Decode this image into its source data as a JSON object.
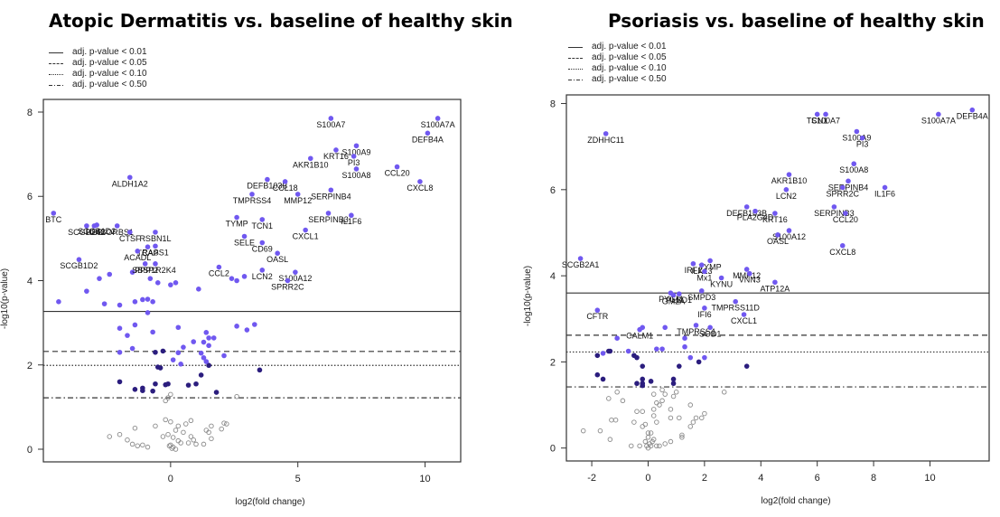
{
  "colors": {
    "significant": "#7058f0",
    "moderate": "#2b1d7e",
    "nonsignificant": "#8a8a8a",
    "frame": "#333333"
  },
  "legend_items": [
    {
      "label": "adj. p-value < 0.01",
      "style": "solid"
    },
    {
      "label": "adj. p-value < 0.05",
      "style": "dashed"
    },
    {
      "label": "adj. p-value < 0.10",
      "style": "dotted"
    },
    {
      "label": "adj. p-value < 0.50",
      "style": "dotdash"
    }
  ],
  "chart_data": [
    {
      "type": "scatter",
      "title": "Atopic Dermatitis vs. baseline of healthy skin",
      "xlabel": "log2(fold change)",
      "ylabel": "-log10(p-value)",
      "xlim": [
        -5,
        11.4
      ],
      "ylim": [
        -0.3,
        8.3
      ],
      "xticks": [
        0,
        5,
        10
      ],
      "yticks": [
        0,
        2,
        4,
        6,
        8
      ],
      "thresholds": [
        {
          "label": "adj. p-value < 0.01",
          "y": 3.27,
          "style": "solid"
        },
        {
          "label": "adj. p-value < 0.05",
          "y": 2.32,
          "style": "dashed"
        },
        {
          "label": "adj. p-value < 0.10",
          "y": 1.99,
          "style": "dotted"
        },
        {
          "label": "adj. p-value < 0.50",
          "y": 1.22,
          "style": "dotdash"
        }
      ],
      "labeled_points": [
        {
          "gene": "S100A7A",
          "x": 10.5,
          "y": 7.85
        },
        {
          "gene": "DEFB4A",
          "x": 10.1,
          "y": 7.5
        },
        {
          "gene": "S100A7",
          "x": 6.3,
          "y": 7.85
        },
        {
          "gene": "S100A9",
          "x": 7.3,
          "y": 7.2
        },
        {
          "gene": "KRT16",
          "x": 6.5,
          "y": 7.1
        },
        {
          "gene": "AKR1B10",
          "x": 5.5,
          "y": 6.9
        },
        {
          "gene": "PI3",
          "x": 7.2,
          "y": 6.95
        },
        {
          "gene": "S100A8",
          "x": 7.3,
          "y": 6.65
        },
        {
          "gene": "CCL20",
          "x": 8.9,
          "y": 6.7
        },
        {
          "gene": "DEFB103B",
          "x": 3.8,
          "y": 6.4
        },
        {
          "gene": "CCL18",
          "x": 4.5,
          "y": 6.35
        },
        {
          "gene": "TMPRSS4",
          "x": 3.2,
          "y": 6.05
        },
        {
          "gene": "MMP12",
          "x": 5.0,
          "y": 6.05
        },
        {
          "gene": "SERPINB4",
          "x": 6.3,
          "y": 6.15
        },
        {
          "gene": "CXCL8",
          "x": 9.8,
          "y": 6.35
        },
        {
          "gene": "ALDH1A2",
          "x": -1.6,
          "y": 6.45
        },
        {
          "gene": "TYMP",
          "x": 2.6,
          "y": 5.5
        },
        {
          "gene": "TCN1",
          "x": 3.6,
          "y": 5.45
        },
        {
          "gene": "SERPINB3",
          "x": 6.2,
          "y": 5.6
        },
        {
          "gene": "IL1F6",
          "x": 7.1,
          "y": 5.55
        },
        {
          "gene": "CXCL1",
          "x": 5.3,
          "y": 5.2
        },
        {
          "gene": "SELE",
          "x": 2.9,
          "y": 5.05
        },
        {
          "gene": "CD69",
          "x": 3.6,
          "y": 4.9
        },
        {
          "gene": "OASL",
          "x": 4.2,
          "y": 4.65
        },
        {
          "gene": "S100A12",
          "x": 4.9,
          "y": 4.2
        },
        {
          "gene": "SPRR2C",
          "x": 4.6,
          "y": 4.0
        },
        {
          "gene": "LCN2",
          "x": 3.6,
          "y": 4.25
        },
        {
          "gene": "CCL2",
          "x": 1.9,
          "y": 4.32
        },
        {
          "gene": "BTC",
          "x": -4.6,
          "y": 5.6
        },
        {
          "gene": "SCGB2A2",
          "x": -3.3,
          "y": 5.3
        },
        {
          "gene": "HBB",
          "x": -3.0,
          "y": 5.3
        },
        {
          "gene": "SCGB1D2",
          "x": -2.9,
          "y": 5.32
        },
        {
          "gene": "SORBS1",
          "x": -2.1,
          "y": 5.3
        },
        {
          "gene": "CTSF",
          "x": -1.6,
          "y": 5.15
        },
        {
          "gene": "RSBN1L",
          "x": -0.6,
          "y": 5.15
        },
        {
          "gene": "TCAP",
          "x": -0.9,
          "y": 4.8
        },
        {
          "gene": "RASS1",
          "x": -0.6,
          "y": 4.82
        },
        {
          "gene": "ACADL",
          "x": -1.3,
          "y": 4.7
        },
        {
          "gene": "SCGB1D2b",
          "x": -3.6,
          "y": 4.5
        },
        {
          "gene": "SBSP2",
          "x": -1.0,
          "y": 4.4
        },
        {
          "gene": "PPP1R2K4",
          "x": -0.6,
          "y": 4.4
        }
      ],
      "significant_points": [
        [
          -4.4,
          3.5
        ],
        [
          -3.3,
          3.75
        ],
        [
          -2.8,
          4.05
        ],
        [
          -2.6,
          3.45
        ],
        [
          -2.4,
          4.15
        ],
        [
          -2.0,
          3.42
        ],
        [
          -1.5,
          4.2
        ],
        [
          -1.4,
          3.5
        ],
        [
          -1.1,
          3.55
        ],
        [
          -0.9,
          3.56
        ],
        [
          -0.8,
          4.05
        ],
        [
          -0.7,
          3.5
        ],
        [
          -0.5,
          3.95
        ],
        [
          0.0,
          3.9
        ],
        [
          0.2,
          3.95
        ],
        [
          1.1,
          3.8
        ],
        [
          2.4,
          4.05
        ],
        [
          2.6,
          4.0
        ],
        [
          2.9,
          4.1
        ],
        [
          -2.0,
          2.87
        ],
        [
          -1.4,
          2.95
        ],
        [
          -0.9,
          3.24
        ],
        [
          -1.7,
          2.7
        ],
        [
          -0.7,
          2.78
        ],
        [
          0.3,
          2.89
        ],
        [
          1.3,
          2.54
        ],
        [
          1.5,
          2.64
        ],
        [
          1.4,
          2.77
        ],
        [
          1.7,
          2.64
        ],
        [
          2.6,
          2.92
        ],
        [
          3.0,
          2.83
        ],
        [
          3.3,
          2.96
        ],
        [
          -2.0,
          2.3
        ],
        [
          -1.5,
          2.39
        ],
        [
          0.3,
          2.29
        ],
        [
          0.5,
          2.42
        ],
        [
          0.9,
          2.55
        ],
        [
          1.5,
          2.46
        ],
        [
          1.2,
          2.28
        ],
        [
          0.1,
          2.12
        ],
        [
          0.4,
          2.02
        ],
        [
          1.4,
          2.08
        ],
        [
          2.1,
          2.22
        ],
        [
          1.3,
          2.17
        ]
      ],
      "moderate_points": [
        [
          -0.3,
          2.33
        ],
        [
          -0.6,
          2.3
        ],
        [
          -0.4,
          1.93
        ],
        [
          -0.5,
          1.95
        ],
        [
          1.5,
          1.99
        ],
        [
          3.5,
          1.88
        ],
        [
          -2.0,
          1.6
        ],
        [
          -1.4,
          1.42
        ],
        [
          -1.1,
          1.45
        ],
        [
          -1.1,
          1.39
        ],
        [
          -0.6,
          1.55
        ],
        [
          -0.1,
          1.55
        ],
        [
          0.7,
          1.52
        ],
        [
          1.0,
          1.55
        ],
        [
          1.2,
          1.76
        ],
        [
          1.8,
          1.35
        ],
        [
          -0.2,
          1.53
        ],
        [
          -0.7,
          1.38
        ]
      ],
      "nonsignificant_points": [
        [
          -2.4,
          0.3
        ],
        [
          -2.0,
          0.35
        ],
        [
          -1.7,
          0.22
        ],
        [
          -1.5,
          0.12
        ],
        [
          -1.3,
          0.08
        ],
        [
          -1.1,
          0.1
        ],
        [
          -0.9,
          0.05
        ],
        [
          -0.2,
          0.7
        ],
        [
          0.0,
          0.65
        ],
        [
          0.3,
          0.55
        ],
        [
          0.6,
          0.6
        ],
        [
          0.2,
          0.45
        ],
        [
          0.5,
          0.4
        ],
        [
          -0.1,
          0.35
        ],
        [
          0.1,
          0.28
        ],
        [
          0.3,
          0.2
        ],
        [
          0.0,
          0.1
        ],
        [
          0.1,
          0.05
        ],
        [
          0.2,
          0.0
        ],
        [
          0.05,
          0.02
        ],
        [
          -0.05,
          0.08
        ],
        [
          0.4,
          0.15
        ],
        [
          0.7,
          0.15
        ],
        [
          1.0,
          0.12
        ],
        [
          1.3,
          0.12
        ],
        [
          0.9,
          0.22
        ],
        [
          0.8,
          0.3
        ],
        [
          1.4,
          0.45
        ],
        [
          1.5,
          0.4
        ],
        [
          1.6,
          0.55
        ],
        [
          2.0,
          0.48
        ],
        [
          2.1,
          0.62
        ],
        [
          2.2,
          0.6
        ],
        [
          -0.3,
          0.3
        ],
        [
          -0.6,
          0.55
        ],
        [
          -1.4,
          0.5
        ],
        [
          -0.2,
          1.15
        ],
        [
          -0.1,
          1.22
        ],
        [
          0.0,
          1.3
        ],
        [
          2.6,
          1.25
        ],
        [
          0.8,
          0.68
        ],
        [
          1.6,
          0.25
        ]
      ]
    },
    {
      "type": "scatter",
      "title": "Psoriasis vs. baseline of healthy skin",
      "xlabel": "log2(fold change)",
      "ylabel": "-log10(p-value)",
      "xlim": [
        -2.9,
        12.1
      ],
      "ylim": [
        -0.3,
        8.2
      ],
      "xticks": [
        -2,
        0,
        2,
        4,
        6,
        8,
        10
      ],
      "yticks": [
        0,
        2,
        4,
        6,
        8
      ],
      "thresholds": [
        {
          "label": "adj. p-value < 0.01",
          "y": 3.6,
          "style": "solid"
        },
        {
          "label": "adj. p-value < 0.05",
          "y": 2.62,
          "style": "dashed"
        },
        {
          "label": "adj. p-value < 0.10",
          "y": 2.23,
          "style": "dotted"
        },
        {
          "label": "adj. p-value < 0.50",
          "y": 1.42,
          "style": "dotdash"
        }
      ],
      "labeled_points": [
        {
          "gene": "DEFB4A",
          "x": 11.5,
          "y": 7.85
        },
        {
          "gene": "S100A7A",
          "x": 10.3,
          "y": 7.75
        },
        {
          "gene": "S100A7",
          "x": 6.3,
          "y": 7.75
        },
        {
          "gene": "TCN1",
          "x": 6.0,
          "y": 7.75
        },
        {
          "gene": "S100A9",
          "x": 7.4,
          "y": 7.35
        },
        {
          "gene": "PI3",
          "x": 7.6,
          "y": 7.2
        },
        {
          "gene": "ZDHHC11",
          "x": -1.5,
          "y": 7.3
        },
        {
          "gene": "S100A8",
          "x": 7.3,
          "y": 6.6
        },
        {
          "gene": "AKR1B10",
          "x": 5.0,
          "y": 6.35
        },
        {
          "gene": "SERPINB4",
          "x": 7.1,
          "y": 6.2
        },
        {
          "gene": "SPRR2C",
          "x": 6.9,
          "y": 6.05
        },
        {
          "gene": "IL1F6",
          "x": 8.4,
          "y": 6.05
        },
        {
          "gene": "LCN2",
          "x": 4.9,
          "y": 6.0
        },
        {
          "gene": "DEFB103B",
          "x": 3.5,
          "y": 5.6
        },
        {
          "gene": "PLA2G4D",
          "x": 3.8,
          "y": 5.5
        },
        {
          "gene": "KRT16",
          "x": 4.5,
          "y": 5.45
        },
        {
          "gene": "SERPINB3",
          "x": 6.6,
          "y": 5.6
        },
        {
          "gene": "CCL20",
          "x": 7.0,
          "y": 5.45
        },
        {
          "gene": "S100A12",
          "x": 5.0,
          "y": 5.05
        },
        {
          "gene": "OASL",
          "x": 4.6,
          "y": 4.95
        },
        {
          "gene": "CXCL8",
          "x": 6.9,
          "y": 4.7
        },
        {
          "gene": "SCGB2A1",
          "x": -2.4,
          "y": 4.4
        },
        {
          "gene": "TYMP",
          "x": 2.2,
          "y": 4.35
        },
        {
          "gene": "IRF1",
          "x": 1.6,
          "y": 4.28
        },
        {
          "gene": "ILK13",
          "x": 1.9,
          "y": 4.25
        },
        {
          "gene": "Mx1",
          "x": 2.0,
          "y": 4.1
        },
        {
          "gene": "MMP12",
          "x": 3.5,
          "y": 4.15
        },
        {
          "gene": "VNN3",
          "x": 3.6,
          "y": 4.05
        },
        {
          "gene": "KYNU",
          "x": 2.6,
          "y": 3.95
        },
        {
          "gene": "ATP12A",
          "x": 4.5,
          "y": 3.85
        },
        {
          "gene": "PYGM",
          "x": 0.8,
          "y": 3.6
        },
        {
          "gene": "GM2A",
          "x": 0.9,
          "y": 3.55
        },
        {
          "gene": "PLBD1",
          "x": 1.1,
          "y": 3.58
        },
        {
          "gene": "SMPD3",
          "x": 1.9,
          "y": 3.65
        },
        {
          "gene": "TMPRSS11D",
          "x": 3.1,
          "y": 3.4
        },
        {
          "gene": "CFTR",
          "x": -1.8,
          "y": 3.2
        },
        {
          "gene": "IFI6",
          "x": 2.0,
          "y": 3.25
        },
        {
          "gene": "CXCL1",
          "x": 3.4,
          "y": 3.1
        },
        {
          "gene": "TMPRSS4",
          "x": 1.7,
          "y": 2.85
        },
        {
          "gene": "SOD1",
          "x": 2.2,
          "y": 2.8
        },
        {
          "gene": "CALM1",
          "x": -0.3,
          "y": 2.75
        }
      ],
      "significant_points": [
        [
          -1.6,
          2.2
        ],
        [
          -1.1,
          2.55
        ],
        [
          -0.7,
          2.25
        ],
        [
          -0.2,
          2.8
        ],
        [
          0.6,
          2.8
        ],
        [
          1.3,
          2.55
        ],
        [
          1.3,
          2.35
        ],
        [
          1.5,
          2.1
        ],
        [
          2.0,
          2.1
        ],
        [
          0.5,
          2.3
        ],
        [
          0.3,
          2.3
        ]
      ],
      "moderate_points": [
        [
          -1.8,
          2.15
        ],
        [
          -1.4,
          2.25
        ],
        [
          -0.5,
          2.15
        ],
        [
          -0.4,
          2.1
        ],
        [
          -0.2,
          1.9
        ],
        [
          1.1,
          1.9
        ],
        [
          1.8,
          2.0
        ],
        [
          3.5,
          1.9
        ],
        [
          -1.8,
          1.7
        ],
        [
          -1.6,
          1.6
        ],
        [
          -0.4,
          1.5
        ],
        [
          -0.2,
          1.6
        ],
        [
          -0.2,
          1.5
        ],
        [
          0.1,
          1.55
        ],
        [
          0.9,
          1.6
        ],
        [
          0.9,
          1.5
        ],
        [
          -0.2,
          1.45
        ],
        [
          -1.35,
          2.25
        ]
      ],
      "nonsignificant_points": [
        [
          -2.3,
          0.4
        ],
        [
          -1.7,
          0.4
        ],
        [
          -1.35,
          0.2
        ],
        [
          -1.3,
          0.65
        ],
        [
          -1.15,
          0.65
        ],
        [
          -1.4,
          1.15
        ],
        [
          -1.1,
          1.3
        ],
        [
          -0.9,
          1.1
        ],
        [
          -0.4,
          0.85
        ],
        [
          -0.5,
          0.6
        ],
        [
          -0.6,
          0.05
        ],
        [
          -0.3,
          0.05
        ],
        [
          -0.2,
          0.5
        ],
        [
          -0.1,
          0.55
        ],
        [
          0.0,
          0.35
        ],
        [
          0.0,
          0.25
        ],
        [
          -0.1,
          0.15
        ],
        [
          0.05,
          0.1
        ],
        [
          0.1,
          0.05
        ],
        [
          0.0,
          0.0
        ],
        [
          0.2,
          0.2
        ],
        [
          0.3,
          0.05
        ],
        [
          0.4,
          0.05
        ],
        [
          0.6,
          0.1
        ],
        [
          0.8,
          0.15
        ],
        [
          0.2,
          0.9
        ],
        [
          0.3,
          1.05
        ],
        [
          0.4,
          1.0
        ],
        [
          0.5,
          1.1
        ],
        [
          0.6,
          1.25
        ],
        [
          0.5,
          1.35
        ],
        [
          0.8,
          0.7
        ],
        [
          0.8,
          0.9
        ],
        [
          0.9,
          1.2
        ],
        [
          1.0,
          1.3
        ],
        [
          1.1,
          0.7
        ],
        [
          1.2,
          0.3
        ],
        [
          1.2,
          0.25
        ],
        [
          1.5,
          0.5
        ],
        [
          1.6,
          0.6
        ],
        [
          1.7,
          0.7
        ],
        [
          1.9,
          0.7
        ],
        [
          2.0,
          0.8
        ],
        [
          1.5,
          1.0
        ],
        [
          2.7,
          1.3
        ],
        [
          0.2,
          0.75
        ],
        [
          0.3,
          0.6
        ],
        [
          0.2,
          1.25
        ],
        [
          -0.2,
          0.85
        ],
        [
          0.1,
          0.35
        ],
        [
          0.15,
          0.15
        ],
        [
          -0.05,
          0.05
        ]
      ]
    }
  ]
}
